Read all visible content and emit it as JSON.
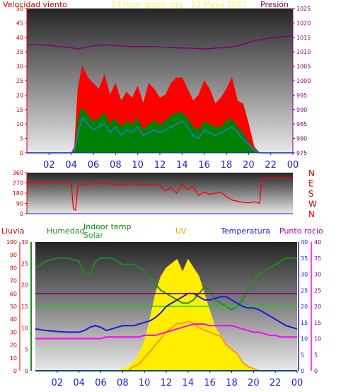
{
  "header": {
    "left_label": "Velocidad viento",
    "center_label": "24 hour graph day - 22 Mayo 2025",
    "right_label": "Presión"
  },
  "colors": {
    "wind_avg": "#ff0000",
    "gust": "#008000",
    "wind_mean_line": "#1e78c8",
    "pressure": "#800080",
    "direction": "#ff0000",
    "humidity": "#228b22",
    "indoor_temp": "#00dd00",
    "solar": "#ffee00",
    "uv": "#ff9900",
    "temperature": "#1a1adc",
    "dew_point": "#ff00ff",
    "rain": "#008000",
    "axis_red": "#d40000",
    "axis_blue": "#1a1adc"
  },
  "x_tick_labels": [
    "02",
    "04",
    "06",
    "08",
    "10",
    "12",
    "14",
    "16",
    "18",
    "20",
    "22",
    "00"
  ],
  "chart_data": [
    {
      "type": "area",
      "title": "24 hour graph day - 22 Mayo 2025",
      "xlabel": "",
      "left_ylabel": "Velocidad viento",
      "right_ylabel": "Presión",
      "left_ylim": [
        0,
        50
      ],
      "left_ticks": [
        0,
        5,
        10,
        15,
        20,
        25,
        30,
        35,
        40,
        45,
        50
      ],
      "right_ylim": [
        975,
        1025
      ],
      "right_ticks": [
        975,
        980,
        985,
        990,
        995,
        1000,
        1005,
        1010,
        1015,
        1020,
        1025
      ],
      "x": [
        0,
        1,
        2,
        3,
        4,
        4.3,
        4.6,
        5,
        5.5,
        6,
        6.5,
        7,
        7.5,
        8,
        8.5,
        9,
        9.5,
        10,
        10.5,
        11,
        11.5,
        12,
        12.5,
        13,
        13.5,
        14,
        14.5,
        15,
        15.5,
        16,
        16.5,
        17,
        17.5,
        18,
        18.5,
        19,
        19.5,
        20,
        20.5,
        21,
        22,
        23,
        24
      ],
      "series": [
        {
          "name": "wind_gust",
          "values": [
            0,
            0,
            0,
            0,
            0,
            2,
            22,
            30,
            26,
            24,
            22,
            27,
            20,
            24,
            18,
            21,
            19,
            23,
            17,
            24,
            22,
            19,
            20,
            24,
            26,
            26,
            22,
            18,
            20,
            25,
            22,
            17,
            19,
            22,
            26,
            18,
            17,
            10,
            2,
            0,
            0,
            0,
            0
          ]
        },
        {
          "name": "wind_avg_fill",
          "values": [
            0,
            0,
            0,
            0,
            0,
            1,
            12,
            16,
            13,
            11,
            12,
            14,
            10,
            12,
            9,
            11,
            10,
            12,
            8,
            10,
            11,
            10,
            11,
            13,
            14,
            14,
            12,
            9,
            8,
            11,
            10,
            9,
            9,
            11,
            12,
            9,
            7,
            4,
            1,
            0,
            0,
            0,
            0
          ]
        },
        {
          "name": "wind_mean",
          "values": [
            0,
            0,
            0,
            0,
            0,
            1,
            7,
            12,
            10,
            8,
            9,
            10,
            7,
            9,
            6,
            8,
            7,
            9,
            6,
            7,
            8,
            7,
            8,
            9,
            10,
            11,
            9,
            6,
            5,
            8,
            7,
            6,
            7,
            8,
            9,
            7,
            5,
            3,
            1,
            0,
            0,
            0,
            0
          ]
        },
        {
          "name": "pressure",
          "values": [
            1012.5,
            1012.4,
            1012.2,
            1011.8,
            1011.5,
            1011.2,
            1011.0,
            1011.3,
            1011.8,
            1012.0,
            1012.2,
            1012.3,
            1012.3,
            1012.2,
            1012.0,
            1011.9,
            1011.8,
            1011.8,
            1011.8,
            1011.8,
            1011.8,
            1011.7,
            1011.6,
            1011.5,
            1011.4,
            1011.3,
            1011.3,
            1011.2,
            1011.1,
            1011.0,
            1011.1,
            1011.3,
            1011.4,
            1011.5,
            1011.7,
            1012.0,
            1012.6,
            1013.2,
            1013.8,
            1014.2,
            1014.8,
            1015.2,
            1015.5
          ]
        }
      ]
    },
    {
      "type": "scatter",
      "title": "",
      "left_ylim": [
        0,
        360
      ],
      "left_ticks": [
        0,
        90,
        180,
        270,
        360
      ],
      "right_tick_labels": [
        "N",
        "W",
        "S",
        "E",
        "N"
      ],
      "x": [
        0,
        1,
        2,
        3,
        4,
        4.2,
        4.4,
        4.6,
        5,
        5.5,
        6,
        7,
        8,
        9,
        10,
        11,
        12,
        12.5,
        13,
        13.5,
        14,
        14.5,
        15,
        15.5,
        16,
        16.5,
        17,
        17.5,
        18,
        18.5,
        19,
        19.5,
        20,
        20.5,
        21,
        21.2,
        22,
        23,
        24
      ],
      "series": [
        {
          "name": "wind_direction",
          "values": [
            270,
            270,
            270,
            270,
            270,
            40,
            30,
            250,
            260,
            250,
            270,
            265,
            255,
            260,
            260,
            255,
            250,
            200,
            230,
            180,
            260,
            210,
            240,
            160,
            190,
            170,
            180,
            190,
            150,
            120,
            110,
            100,
            95,
            105,
            90,
            310,
            315,
            315,
            315
          ]
        }
      ]
    },
    {
      "type": "area",
      "title": "",
      "labels": {
        "rain": "Lluvia",
        "humidity": "Humedad",
        "indoor_temp": "Indoor temp",
        "solar": "Solar",
        "uv": "UV",
        "temperature": "Temperatura",
        "dew_point": "Punto rocío"
      },
      "rain_ylim": [
        0,
        100
      ],
      "rain_ticks": [
        0,
        10,
        20,
        30,
        40,
        50,
        60,
        70,
        80,
        90,
        100
      ],
      "uv_ylim": [
        0,
        30
      ],
      "uv_ticks": [
        0,
        5,
        10,
        15,
        20,
        25,
        30
      ],
      "temp_ylim": [
        0,
        40
      ],
      "temp_ticks": [
        0,
        5,
        10,
        15,
        20,
        25,
        30,
        35,
        40
      ],
      "x": [
        0,
        1,
        2,
        3,
        4,
        4.5,
        5,
        5.5,
        6,
        6.5,
        7,
        7.5,
        8,
        8.5,
        9,
        9.5,
        10,
        10.5,
        11,
        11.5,
        12,
        12.5,
        13,
        13.5,
        14,
        14.5,
        15,
        15.5,
        16,
        16.5,
        17,
        17.5,
        18,
        18.5,
        19,
        19.5,
        20,
        20.5,
        21,
        21.5,
        22,
        22.5,
        23,
        23.5,
        24
      ],
      "series": [
        {
          "name": "humidity",
          "values": [
            32,
            34,
            35,
            35,
            34,
            30,
            30,
            34,
            35,
            35,
            35,
            34,
            33,
            33,
            33,
            32,
            31,
            29,
            27,
            25,
            24,
            23,
            22,
            21,
            21,
            22,
            24,
            26,
            25,
            22,
            21,
            20,
            19,
            20,
            22,
            25,
            28,
            30,
            31,
            32,
            33,
            34,
            35,
            35,
            35
          ]
        },
        {
          "name": "indoor_temp",
          "values": [
            20,
            20,
            20,
            20,
            20,
            20,
            20,
            20,
            20,
            20,
            20,
            20,
            20,
            20,
            20,
            20,
            20,
            20,
            20,
            20,
            20,
            20,
            20,
            20,
            20,
            20,
            20,
            20,
            20,
            20,
            20,
            20,
            20,
            20,
            20,
            20,
            20,
            20,
            20,
            20,
            20,
            20,
            20,
            20,
            20
          ]
        },
        {
          "name": "temperature",
          "values": [
            13,
            12.5,
            12.2,
            12,
            12,
            12.5,
            13.5,
            14,
            13.5,
            12.5,
            13,
            13.5,
            14,
            14,
            14,
            14.5,
            15,
            15.5,
            16.5,
            18,
            20,
            21,
            22,
            23,
            24,
            24,
            23,
            22,
            22,
            22.5,
            23,
            23,
            22,
            21,
            20,
            19.5,
            19.5,
            19,
            18,
            17,
            16,
            15,
            14,
            13.5,
            13
          ]
        },
        {
          "name": "dew_point",
          "values": [
            10,
            10,
            10,
            10,
            10,
            10,
            10,
            10,
            10,
            10.5,
            10.5,
            10.5,
            10.5,
            10.5,
            10.5,
            10.5,
            11,
            11,
            11,
            11.5,
            12,
            12.5,
            13,
            13.5,
            14,
            14.5,
            14.5,
            14.5,
            14,
            14,
            14,
            14,
            14,
            13.5,
            13,
            12.5,
            12,
            12,
            11.5,
            11,
            11,
            10.5,
            10.5,
            10.5,
            10.5
          ]
        },
        {
          "name": "solar",
          "values": [
            0,
            0,
            0,
            0,
            0,
            0,
            0,
            0,
            0,
            0,
            0,
            0,
            0.5,
            1,
            2,
            4,
            7,
            12,
            18,
            22,
            24,
            25,
            26,
            23,
            26,
            24,
            22,
            18,
            14,
            10,
            8,
            6,
            5,
            4,
            2,
            1,
            0.5,
            0,
            0,
            0,
            0,
            0,
            0,
            0,
            0
          ]
        },
        {
          "name": "uv",
          "values": [
            0,
            0,
            0,
            0,
            0,
            0,
            0,
            0,
            0,
            0,
            0,
            0,
            0,
            0,
            1,
            1.5,
            3,
            4.5,
            6,
            7.5,
            9,
            10,
            11,
            11,
            11.5,
            11,
            10,
            9.5,
            9,
            8.5,
            8,
            6,
            5,
            4,
            2,
            1,
            0.5,
            0,
            0,
            0,
            0,
            0,
            0,
            0,
            0
          ]
        },
        {
          "name": "rain",
          "values": [
            0,
            0,
            0,
            0,
            0,
            0,
            0,
            0,
            0,
            0,
            0,
            0,
            0,
            0,
            0,
            0,
            0,
            0,
            0,
            0,
            0,
            0,
            0,
            0,
            0,
            0,
            0,
            0,
            0,
            0,
            0,
            0,
            0,
            0,
            0,
            0,
            0,
            0,
            0,
            0,
            0,
            0,
            0,
            0,
            0
          ]
        }
      ]
    }
  ]
}
